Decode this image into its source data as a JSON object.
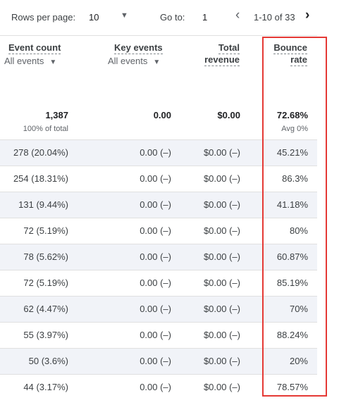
{
  "pagination": {
    "rows_per_page_label": "Rows per page:",
    "rows_per_page_value": "10",
    "go_to_label": "Go to:",
    "go_to_value": "1",
    "range_label": "1-10 of 33"
  },
  "columns": {
    "event_count": {
      "title": "Event count",
      "filter": "All events"
    },
    "key_events": {
      "title": "Key events",
      "filter": "All events"
    },
    "total_revenue": {
      "title_line1": "Total",
      "title_line2": "revenue"
    },
    "bounce_rate": {
      "title_line1": "Bounce",
      "title_line2": "rate"
    }
  },
  "totals": {
    "event_count": "1,387",
    "event_count_sub": "100% of total",
    "key_events": "0.00",
    "total_revenue": "$0.00",
    "bounce_rate": "72.68%",
    "bounce_rate_sub": "Avg 0%"
  },
  "rows": [
    {
      "event_count": "278 (20.04%)",
      "key_events": "0.00 (–)",
      "revenue": "$0.00 (–)",
      "bounce": "45.21%"
    },
    {
      "event_count": "254 (18.31%)",
      "key_events": "0.00 (–)",
      "revenue": "$0.00 (–)",
      "bounce": "86.3%"
    },
    {
      "event_count": "131 (9.44%)",
      "key_events": "0.00 (–)",
      "revenue": "$0.00 (–)",
      "bounce": "41.18%"
    },
    {
      "event_count": "72 (5.19%)",
      "key_events": "0.00 (–)",
      "revenue": "$0.00 (–)",
      "bounce": "80%"
    },
    {
      "event_count": "78 (5.62%)",
      "key_events": "0.00 (–)",
      "revenue": "$0.00 (–)",
      "bounce": "60.87%"
    },
    {
      "event_count": "72 (5.19%)",
      "key_events": "0.00 (–)",
      "revenue": "$0.00 (–)",
      "bounce": "85.19%"
    },
    {
      "event_count": "62 (4.47%)",
      "key_events": "0.00 (–)",
      "revenue": "$0.00 (–)",
      "bounce": "70%"
    },
    {
      "event_count": "55 (3.97%)",
      "key_events": "0.00 (–)",
      "revenue": "$0.00 (–)",
      "bounce": "88.24%"
    },
    {
      "event_count": "50 (3.6%)",
      "key_events": "0.00 (–)",
      "revenue": "$0.00 (–)",
      "bounce": "20%"
    },
    {
      "event_count": "44 (3.17%)",
      "key_events": "0.00 (–)",
      "revenue": "$0.00 (–)",
      "bounce": "78.57%"
    }
  ],
  "icons": {
    "rows_per_page_caret": "caret-down-icon",
    "prev_page": "chevron-left-icon",
    "next_page": "chevron-right-icon",
    "filter_caret": "caret-down-icon"
  },
  "colors": {
    "highlight_border": "#e53935",
    "row_alt_background": "#f1f3f8"
  }
}
